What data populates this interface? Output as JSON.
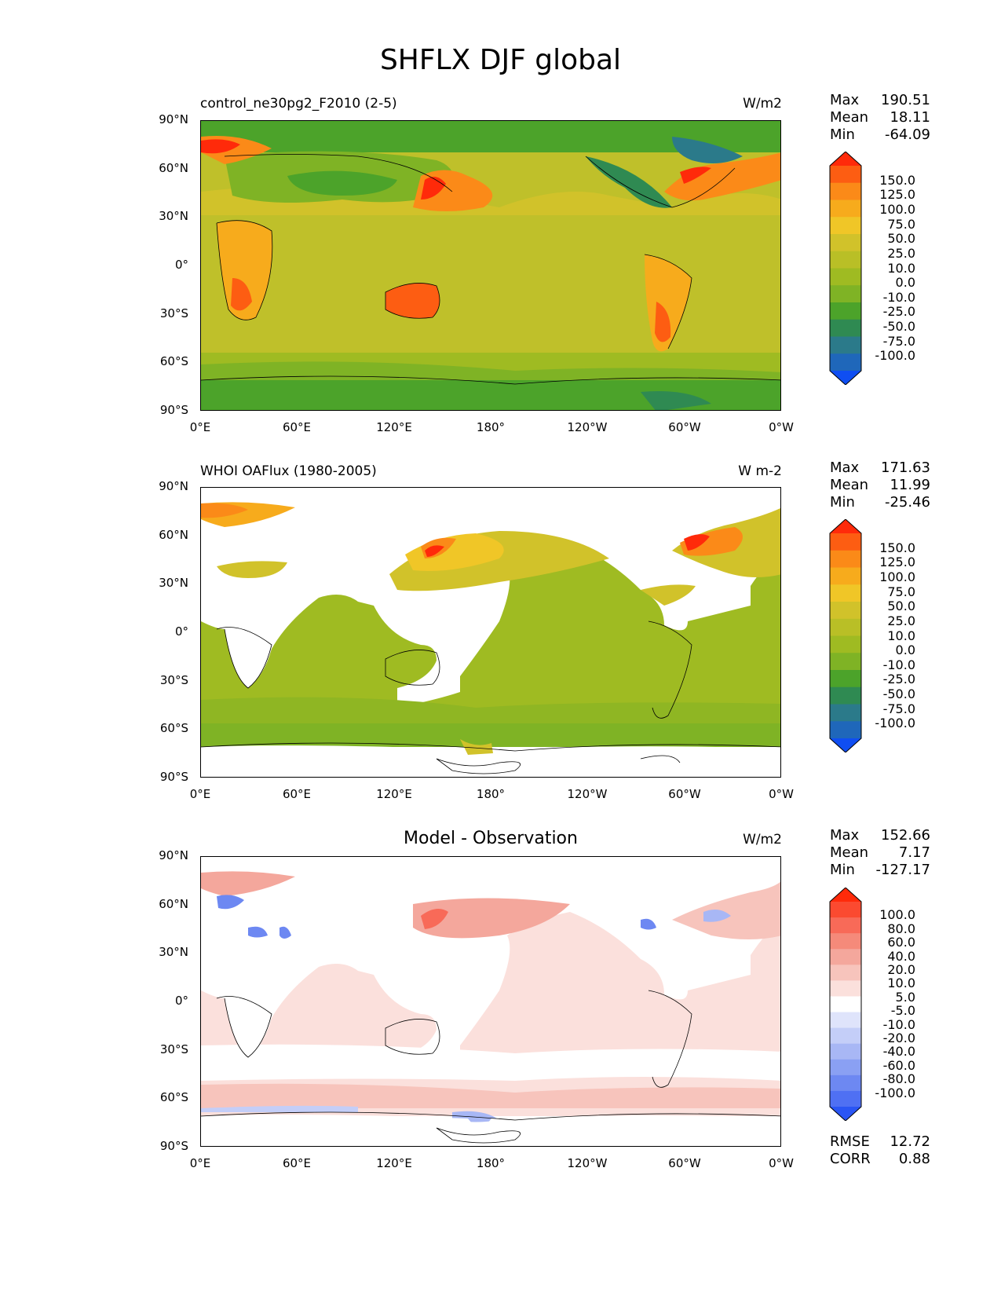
{
  "figure": {
    "title": "SHFLX DJF global"
  },
  "axes": {
    "lat_labels": [
      "90°N",
      "60°N",
      "30°N",
      "0°",
      "30°S",
      "60°S",
      "90°S"
    ],
    "lon_labels": [
      "0°E",
      "60°E",
      "120°E",
      "180°",
      "120°W",
      "60°W",
      "0°W"
    ]
  },
  "panels": [
    {
      "left_title": "control_ne30pg2_F2010 (2-5)",
      "center_title": "",
      "units": "W/m2",
      "stats": [
        {
          "label": "Max",
          "value": "190.51"
        },
        {
          "label": "Mean",
          "value": "18.11"
        },
        {
          "label": "Min",
          "value": "-64.09"
        }
      ],
      "colorbar_levels": [
        "150.0",
        "125.0",
        "100.0",
        "75.0",
        "50.0",
        "25.0",
        "10.0",
        "0.0",
        "-10.0",
        "-25.0",
        "-50.0",
        "-75.0",
        "-100.0"
      ],
      "colorbar_colors": [
        "#ff2a0a",
        "#fd5d12",
        "#fb8a18",
        "#f7ab1c",
        "#f0c627",
        "#d1c22a",
        "#b9bf26",
        "#9fbb22",
        "#7fb325",
        "#4ca32a",
        "#2f8a52",
        "#2b7a8a",
        "#1f67ba",
        "#0f4ef2"
      ]
    },
    {
      "left_title": "WHOI OAFlux (1980-2005)",
      "center_title": "",
      "units": "W m-2",
      "stats": [
        {
          "label": "Max",
          "value": "171.63"
        },
        {
          "label": "Mean",
          "value": "11.99"
        },
        {
          "label": "Min",
          "value": "-25.46"
        }
      ],
      "colorbar_levels": [
        "150.0",
        "125.0",
        "100.0",
        "75.0",
        "50.0",
        "25.0",
        "10.0",
        "0.0",
        "-10.0",
        "-25.0",
        "-50.0",
        "-75.0",
        "-100.0"
      ],
      "colorbar_colors": [
        "#ff2a0a",
        "#fd5d12",
        "#fb8a18",
        "#f7ab1c",
        "#f0c627",
        "#d1c22a",
        "#b9bf26",
        "#9fbb22",
        "#7fb325",
        "#4ca32a",
        "#2f8a52",
        "#2b7a8a",
        "#1f67ba",
        "#0f4ef2"
      ]
    },
    {
      "left_title": "",
      "center_title": "Model - Observation",
      "units": "W/m2",
      "stats": [
        {
          "label": "Max",
          "value": "152.66"
        },
        {
          "label": "Mean",
          "value": "7.17"
        },
        {
          "label": "Min",
          "value": "-127.17"
        }
      ],
      "colorbar_levels": [
        "100.0",
        "80.0",
        "60.0",
        "40.0",
        "20.0",
        "10.0",
        "5.0",
        "-5.0",
        "-10.0",
        "-20.0",
        "-40.0",
        "-60.0",
        "-80.0",
        "-100.0"
      ],
      "colorbar_colors": [
        "#ff2a0a",
        "#fb4a30",
        "#f86a58",
        "#f58a7a",
        "#f4a79c",
        "#f7c4bc",
        "#fbe0dc",
        "#ffffff",
        "#dfe4fb",
        "#c4cef8",
        "#a8b7f5",
        "#8aa0f3",
        "#6d88f2",
        "#4f70f3",
        "#2a55f4"
      ],
      "metrics": [
        {
          "label": "RMSE",
          "value": "12.72"
        },
        {
          "label": "CORR",
          "value": "0.88"
        }
      ]
    }
  ]
}
